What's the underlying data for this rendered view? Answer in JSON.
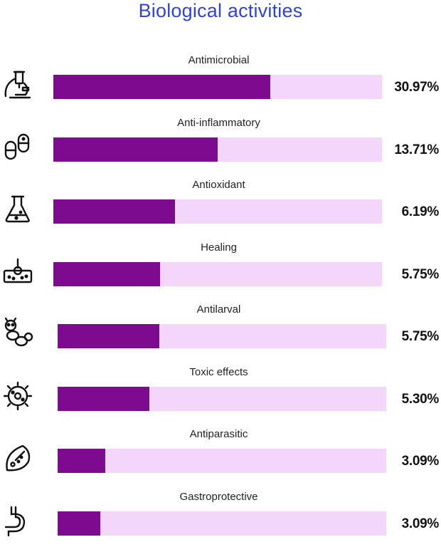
{
  "chart_data": {
    "type": "bar",
    "title": "Biological activities",
    "categories": [
      "Antimicrobial",
      "Anti-inflammatory",
      "Antioxidant",
      "Healing",
      "Antilarval",
      "Toxic effects",
      "Antiparasitic",
      "Gastroprotective"
    ],
    "values": [
      30.97,
      13.71,
      6.19,
      5.75,
      5.75,
      5.3,
      3.09,
      3.09
    ],
    "value_labels": [
      "30.97%",
      "13.71%",
      "6.19%",
      "5.75%",
      "5.75%",
      "5.30%",
      "3.09%",
      "3.09%"
    ],
    "fill_fractions": [
      0.66,
      0.5,
      0.37,
      0.325,
      0.31,
      0.28,
      0.145,
      0.13
    ],
    "icons": [
      "microscope-icon",
      "capsules-icon",
      "flask-icon",
      "skin-layer-icon",
      "larva-icon",
      "bacterium-icon",
      "parasite-icon",
      "stomach-icon"
    ],
    "colors": {
      "bar": "#7e0a8f",
      "track": "#f3d6f9",
      "title": "#3344cc"
    },
    "orientation": "horizontal",
    "grid": false,
    "legend": "none"
  }
}
